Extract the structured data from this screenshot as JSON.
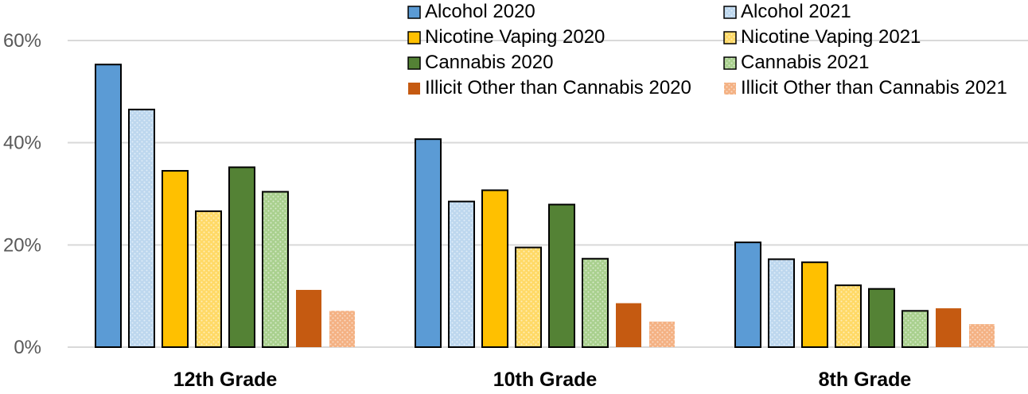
{
  "chart_data": {
    "type": "bar",
    "title": "",
    "xlabel": "",
    "ylabel": "",
    "ylim": [
      0,
      60
    ],
    "y_ticks": [
      0,
      20,
      40,
      60
    ],
    "y_tick_labels": [
      "0%",
      "20%",
      "40%",
      "60%"
    ],
    "grid": true,
    "legend_position": "top-right",
    "categories": [
      "12th Grade",
      "10th Grade",
      "8th Grade"
    ],
    "series": [
      {
        "name": "Alcohol 2020",
        "values": [
          55.3,
          40.7,
          20.5
        ],
        "color": "#5b9bd5",
        "pattern": "solid"
      },
      {
        "name": "Alcohol 2021",
        "values": [
          46.5,
          28.5,
          17.2
        ],
        "color": "#bdd7ee",
        "pattern": "dotted"
      },
      {
        "name": "Nicotine Vaping 2020",
        "values": [
          34.5,
          30.7,
          16.6
        ],
        "color": "#ffc000",
        "pattern": "solid"
      },
      {
        "name": "Nicotine Vaping 2021",
        "values": [
          26.6,
          19.5,
          12.1
        ],
        "color": "#ffd966",
        "pattern": "dotted"
      },
      {
        "name": "Cannabis 2020",
        "values": [
          35.2,
          27.9,
          11.4
        ],
        "color": "#548235",
        "pattern": "solid"
      },
      {
        "name": "Cannabis 2021",
        "values": [
          30.4,
          17.3,
          7.1
        ],
        "color": "#a9d08e",
        "pattern": "dotted"
      },
      {
        "name": "Illicit Other than Cannabis 2020",
        "values": [
          11.2,
          8.6,
          7.6
        ],
        "color": "#c55a11",
        "pattern": "solid"
      },
      {
        "name": "Illicit Other than Cannabis 2021",
        "values": [
          7.1,
          5.0,
          4.5
        ],
        "color": "#f4b183",
        "pattern": "dotted"
      }
    ]
  }
}
